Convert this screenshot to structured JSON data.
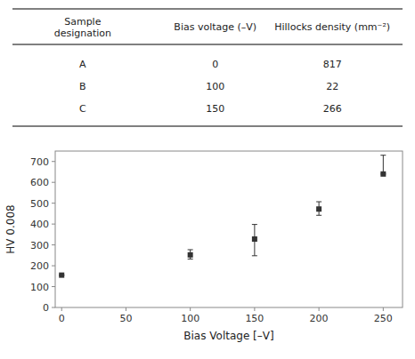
{
  "chart_data": [
    {
      "type": "table",
      "columns": [
        "Sample\ndesignation",
        "Bias voltage (–V)",
        "Hillocks density (mm⁻²)"
      ],
      "rows": [
        [
          "A",
          "0",
          "817"
        ],
        [
          "B",
          "100",
          "22"
        ],
        [
          "C",
          "150",
          "266"
        ]
      ]
    },
    {
      "type": "scatter",
      "x": [
        0,
        100,
        150,
        200,
        250
      ],
      "values": [
        155,
        252,
        328,
        472,
        640
      ],
      "error_lower": [
        0,
        20,
        80,
        30,
        0
      ],
      "error_upper": [
        0,
        25,
        70,
        35,
        90
      ],
      "xlabel": "Bias Voltage [–V]",
      "ylabel": "HV 0.008",
      "xlim": [
        -5,
        265
      ],
      "ylim": [
        0,
        750
      ],
      "xticks": [
        0,
        50,
        100,
        150,
        200,
        250
      ],
      "yticks": [
        0,
        100,
        200,
        300,
        400,
        500,
        600,
        700
      ],
      "marker": "square",
      "color": "#333333",
      "grid": false
    }
  ]
}
